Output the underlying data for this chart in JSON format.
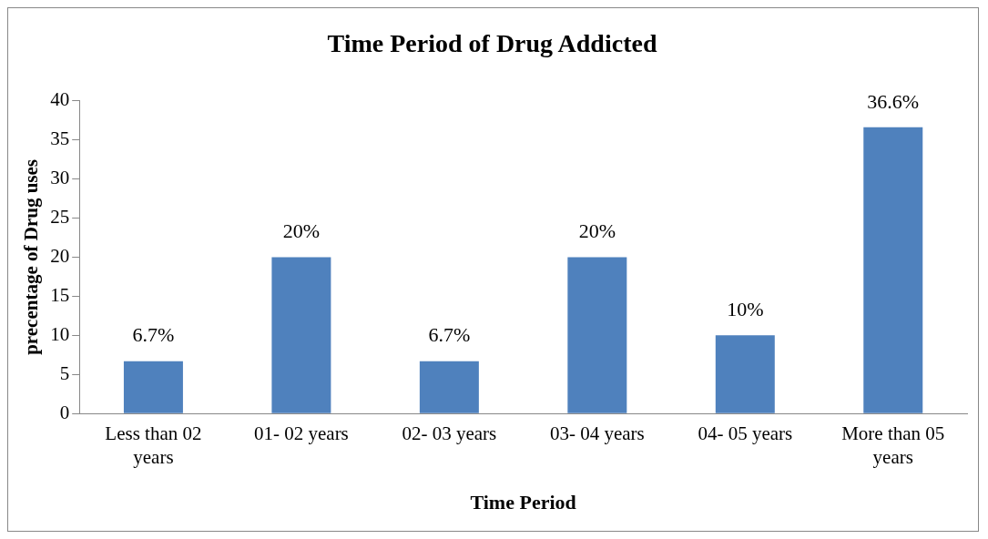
{
  "chart_data": {
    "type": "bar",
    "title": "Time Period of Drug Addicted",
    "xlabel": "Time Period",
    "ylabel": "precentage of Drug uses",
    "categories": [
      "Less than 02 years",
      "01- 02 years",
      "02- 03 years",
      "03- 04 years",
      "04- 05 years",
      "More than 05 years"
    ],
    "values": [
      6.7,
      20,
      6.7,
      20,
      10,
      36.6
    ],
    "value_labels": [
      "6.7%",
      "20%",
      "6.7%",
      "20%",
      "10%",
      "36.6%"
    ],
    "color": "#4f81bd",
    "ylim": [
      0,
      40
    ],
    "yticks": [
      0,
      5,
      10,
      15,
      20,
      25,
      30,
      35,
      40
    ],
    "grid": false,
    "legend": false
  }
}
